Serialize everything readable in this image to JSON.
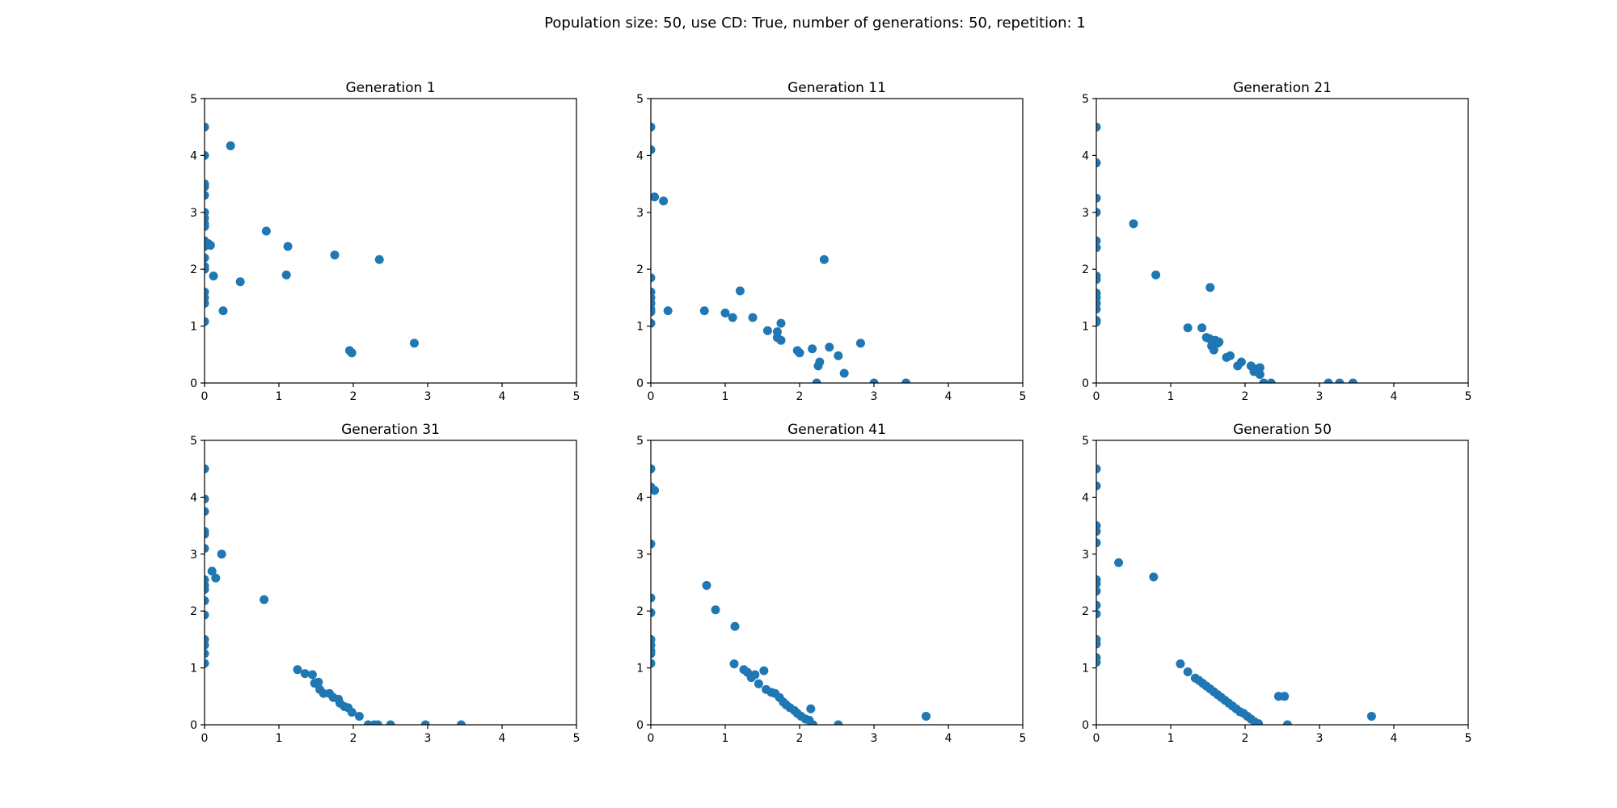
{
  "figure": {
    "title": "Population size: 50, use CD: True, number of generations: 50, repetition: 1",
    "marker_color": "#1f77b4"
  },
  "chart_data": [
    {
      "type": "scatter",
      "title": "Generation 1",
      "xlim": [
        0,
        5
      ],
      "ylim": [
        0,
        5
      ],
      "xticks": [
        "0",
        "1",
        "2",
        "3",
        "4",
        "5"
      ],
      "yticks": [
        "0",
        "1",
        "2",
        "3",
        "4",
        "5"
      ],
      "grid": false,
      "points": [
        [
          0,
          4.5
        ],
        [
          0,
          4.0
        ],
        [
          0,
          3.5
        ],
        [
          0,
          3.45
        ],
        [
          0,
          3.3
        ],
        [
          0,
          3.0
        ],
        [
          0,
          2.9
        ],
        [
          0,
          2.8
        ],
        [
          0,
          2.75
        ],
        [
          0,
          2.5
        ],
        [
          0,
          2.45
        ],
        [
          0,
          2.4
        ],
        [
          0,
          2.2
        ],
        [
          0,
          2.05
        ],
        [
          0,
          2.0
        ],
        [
          0,
          1.6
        ],
        [
          0,
          1.5
        ],
        [
          0,
          1.4
        ],
        [
          0,
          1.08
        ],
        [
          0.05,
          2.45
        ],
        [
          0.08,
          2.42
        ],
        [
          0.12,
          1.88
        ],
        [
          0.25,
          1.27
        ],
        [
          0.35,
          4.17
        ],
        [
          0.48,
          1.78
        ],
        [
          0.83,
          2.67
        ],
        [
          1.1,
          1.9
        ],
        [
          1.12,
          2.4
        ],
        [
          1.75,
          2.25
        ],
        [
          1.95,
          0.57
        ],
        [
          1.98,
          0.53
        ],
        [
          2.35,
          2.17
        ],
        [
          2.82,
          0.7
        ]
      ]
    },
    {
      "type": "scatter",
      "title": "Generation 11",
      "xlim": [
        0,
        5
      ],
      "ylim": [
        0,
        5
      ],
      "xticks": [
        "0",
        "1",
        "2",
        "3",
        "4",
        "5"
      ],
      "yticks": [
        "0",
        "1",
        "2",
        "3",
        "4",
        "5"
      ],
      "grid": false,
      "points": [
        [
          0,
          4.5
        ],
        [
          0,
          4.1
        ],
        [
          0,
          1.85
        ],
        [
          0,
          1.6
        ],
        [
          0,
          1.5
        ],
        [
          0,
          1.4
        ],
        [
          0,
          1.3
        ],
        [
          0,
          1.25
        ],
        [
          0,
          1.05
        ],
        [
          0.05,
          3.27
        ],
        [
          0.17,
          3.2
        ],
        [
          0.23,
          1.27
        ],
        [
          0.72,
          1.27
        ],
        [
          1.0,
          1.23
        ],
        [
          1.1,
          1.15
        ],
        [
          1.2,
          1.62
        ],
        [
          1.37,
          1.15
        ],
        [
          1.57,
          0.92
        ],
        [
          1.7,
          0.9
        ],
        [
          1.7,
          0.8
        ],
        [
          1.75,
          0.75
        ],
        [
          1.75,
          1.05
        ],
        [
          1.97,
          0.57
        ],
        [
          2.0,
          0.53
        ],
        [
          2.17,
          0.6
        ],
        [
          2.25,
          0.3
        ],
        [
          2.27,
          0.37
        ],
        [
          2.33,
          2.17
        ],
        [
          2.4,
          0.63
        ],
        [
          2.52,
          0.48
        ],
        [
          2.6,
          0.17
        ],
        [
          2.82,
          0.7
        ],
        [
          2.23,
          0
        ],
        [
          3.0,
          0
        ],
        [
          3.43,
          0
        ]
      ]
    },
    {
      "type": "scatter",
      "title": "Generation 21",
      "xlim": [
        0,
        5
      ],
      "ylim": [
        0,
        5
      ],
      "xticks": [
        "0",
        "1",
        "2",
        "3",
        "4",
        "5"
      ],
      "yticks": [
        "0",
        "1",
        "2",
        "3",
        "4",
        "5"
      ],
      "grid": false,
      "points": [
        [
          0,
          4.5
        ],
        [
          0,
          3.87
        ],
        [
          0,
          3.25
        ],
        [
          0,
          3.0
        ],
        [
          0,
          2.5
        ],
        [
          0,
          2.38
        ],
        [
          0,
          1.88
        ],
        [
          0,
          1.82
        ],
        [
          0,
          1.58
        ],
        [
          0,
          1.5
        ],
        [
          0,
          1.4
        ],
        [
          0,
          1.3
        ],
        [
          0,
          1.1
        ],
        [
          0,
          1.07
        ],
        [
          0.5,
          2.8
        ],
        [
          0.8,
          1.9
        ],
        [
          1.23,
          0.97
        ],
        [
          1.42,
          0.97
        ],
        [
          1.48,
          0.8
        ],
        [
          1.52,
          0.78
        ],
        [
          1.55,
          0.75
        ],
        [
          1.53,
          1.68
        ],
        [
          1.55,
          0.65
        ],
        [
          1.58,
          0.58
        ],
        [
          1.6,
          0.75
        ],
        [
          1.63,
          0.7
        ],
        [
          1.65,
          0.72
        ],
        [
          1.75,
          0.45
        ],
        [
          1.8,
          0.48
        ],
        [
          1.9,
          0.3
        ],
        [
          1.95,
          0.37
        ],
        [
          2.08,
          0.3
        ],
        [
          2.12,
          0.2
        ],
        [
          2.17,
          0.25
        ],
        [
          2.2,
          0.15
        ],
        [
          2.2,
          0.27
        ],
        [
          2.25,
          0
        ],
        [
          2.35,
          0
        ],
        [
          3.12,
          0
        ],
        [
          3.27,
          0
        ],
        [
          3.45,
          0
        ]
      ]
    },
    {
      "type": "scatter",
      "title": "Generation 31",
      "xlim": [
        0,
        5
      ],
      "ylim": [
        0,
        5
      ],
      "xticks": [
        "0",
        "1",
        "2",
        "3",
        "4",
        "5"
      ],
      "yticks": [
        "0",
        "1",
        "2",
        "3",
        "4",
        "5"
      ],
      "grid": false,
      "points": [
        [
          0,
          4.5
        ],
        [
          0,
          3.97
        ],
        [
          0,
          3.75
        ],
        [
          0,
          3.4
        ],
        [
          0,
          3.35
        ],
        [
          0,
          3.1
        ],
        [
          0,
          2.55
        ],
        [
          0,
          2.45
        ],
        [
          0,
          2.38
        ],
        [
          0,
          2.18
        ],
        [
          0,
          1.93
        ],
        [
          0,
          1.5
        ],
        [
          0,
          1.4
        ],
        [
          0,
          1.25
        ],
        [
          0,
          1.08
        ],
        [
          0.1,
          2.7
        ],
        [
          0.15,
          2.58
        ],
        [
          0.23,
          3.0
        ],
        [
          0.8,
          2.2
        ],
        [
          1.25,
          0.97
        ],
        [
          1.35,
          0.9
        ],
        [
          1.45,
          0.88
        ],
        [
          1.48,
          0.73
        ],
        [
          1.53,
          0.75
        ],
        [
          1.55,
          0.62
        ],
        [
          1.6,
          0.55
        ],
        [
          1.68,
          0.55
        ],
        [
          1.73,
          0.48
        ],
        [
          1.8,
          0.45
        ],
        [
          1.82,
          0.38
        ],
        [
          1.88,
          0.32
        ],
        [
          1.93,
          0.3
        ],
        [
          1.98,
          0.22
        ],
        [
          2.08,
          0.15
        ],
        [
          2.2,
          0
        ],
        [
          2.28,
          0
        ],
        [
          2.33,
          0
        ],
        [
          2.5,
          0
        ],
        [
          2.97,
          0
        ],
        [
          3.45,
          0
        ]
      ]
    },
    {
      "type": "scatter",
      "title": "Generation 41",
      "xlim": [
        0,
        5
      ],
      "ylim": [
        0,
        5
      ],
      "xticks": [
        "0",
        "1",
        "2",
        "3",
        "4",
        "5"
      ],
      "yticks": [
        "0",
        "1",
        "2",
        "3",
        "4",
        "5"
      ],
      "grid": false,
      "points": [
        [
          0,
          4.5
        ],
        [
          0,
          4.18
        ],
        [
          0,
          3.18
        ],
        [
          0,
          2.23
        ],
        [
          0,
          1.97
        ],
        [
          0,
          1.5
        ],
        [
          0,
          1.4
        ],
        [
          0,
          1.3
        ],
        [
          0,
          1.25
        ],
        [
          0,
          1.08
        ],
        [
          0.05,
          4.12
        ],
        [
          0.75,
          2.45
        ],
        [
          0.87,
          2.02
        ],
        [
          1.13,
          1.73
        ],
        [
          1.12,
          1.07
        ],
        [
          1.25,
          0.97
        ],
        [
          1.3,
          0.92
        ],
        [
          1.35,
          0.83
        ],
        [
          1.4,
          0.88
        ],
        [
          1.45,
          0.72
        ],
        [
          1.52,
          0.95
        ],
        [
          1.55,
          0.62
        ],
        [
          1.62,
          0.57
        ],
        [
          1.67,
          0.55
        ],
        [
          1.73,
          0.48
        ],
        [
          1.78,
          0.4
        ],
        [
          1.82,
          0.35
        ],
        [
          1.87,
          0.3
        ],
        [
          1.93,
          0.25
        ],
        [
          1.97,
          0.2
        ],
        [
          2.02,
          0.15
        ],
        [
          2.08,
          0.1
        ],
        [
          2.13,
          0.08
        ],
        [
          2.15,
          0.28
        ],
        [
          2.18,
          0
        ],
        [
          2.52,
          0
        ],
        [
          3.7,
          0.15
        ]
      ]
    },
    {
      "type": "scatter",
      "title": "Generation 50",
      "xlim": [
        0,
        5
      ],
      "ylim": [
        0,
        5
      ],
      "xticks": [
        "0",
        "1",
        "2",
        "3",
        "4",
        "5"
      ],
      "yticks": [
        "0",
        "1",
        "2",
        "3",
        "4",
        "5"
      ],
      "grid": false,
      "points": [
        [
          0,
          4.5
        ],
        [
          0,
          4.2
        ],
        [
          0,
          3.5
        ],
        [
          0,
          3.4
        ],
        [
          0,
          3.2
        ],
        [
          0,
          2.55
        ],
        [
          0,
          2.48
        ],
        [
          0,
          2.35
        ],
        [
          0,
          2.1
        ],
        [
          0,
          1.95
        ],
        [
          0,
          1.5
        ],
        [
          0,
          1.42
        ],
        [
          0,
          1.18
        ],
        [
          0,
          1.1
        ],
        [
          0.3,
          2.85
        ],
        [
          0.77,
          2.6
        ],
        [
          1.13,
          1.07
        ],
        [
          1.23,
          0.93
        ],
        [
          1.33,
          0.82
        ],
        [
          1.38,
          0.78
        ],
        [
          1.43,
          0.73
        ],
        [
          1.48,
          0.68
        ],
        [
          1.53,
          0.63
        ],
        [
          1.58,
          0.58
        ],
        [
          1.63,
          0.53
        ],
        [
          1.68,
          0.48
        ],
        [
          1.73,
          0.43
        ],
        [
          1.78,
          0.38
        ],
        [
          1.83,
          0.33
        ],
        [
          1.88,
          0.28
        ],
        [
          1.93,
          0.23
        ],
        [
          1.98,
          0.2
        ],
        [
          2.03,
          0.15
        ],
        [
          2.08,
          0.1
        ],
        [
          2.13,
          0.05
        ],
        [
          2.18,
          0.02
        ],
        [
          2.45,
          0.5
        ],
        [
          2.53,
          0.5
        ],
        [
          2.57,
          0
        ],
        [
          3.7,
          0.15
        ]
      ]
    }
  ]
}
